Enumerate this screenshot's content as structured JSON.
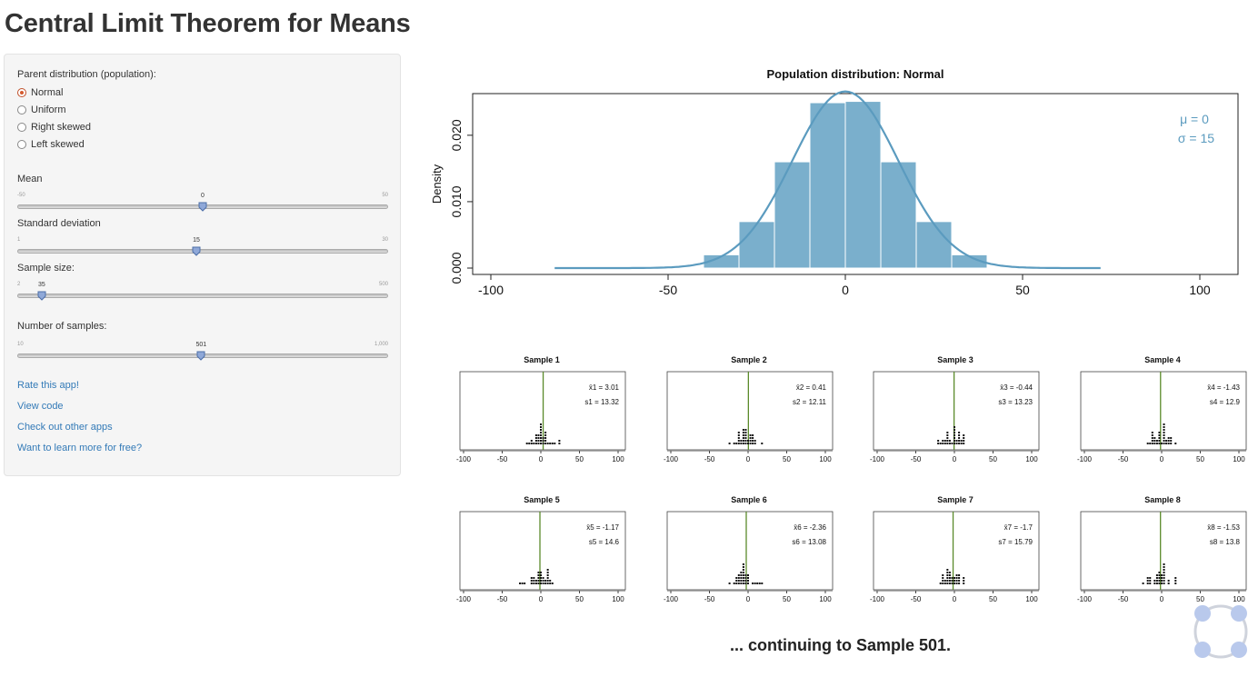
{
  "page": {
    "title": "Central Limit Theorem for Means"
  },
  "sidebar": {
    "parent_label": "Parent distribution (population):",
    "distributions": [
      {
        "label": "Normal",
        "checked": true
      },
      {
        "label": "Uniform",
        "checked": false
      },
      {
        "label": "Right skewed",
        "checked": false
      },
      {
        "label": "Left skewed",
        "checked": false
      }
    ],
    "sliders": [
      {
        "label": "Mean",
        "min": "-50",
        "max": "50",
        "value": "0",
        "fraction": 0.5
      },
      {
        "label": "Standard deviation",
        "min": "1",
        "max": "30",
        "value": "15",
        "fraction": 0.483
      },
      {
        "label": "Sample size:",
        "min": "2",
        "max": "500",
        "value": "35",
        "fraction": 0.066
      },
      {
        "label": "Number of samples:",
        "min": "10",
        "max": "1,000",
        "value": "501",
        "fraction": 0.496
      }
    ],
    "links": [
      "Rate this app!",
      "View code",
      "Check out other apps",
      "Want to learn more for free?"
    ]
  },
  "colors": {
    "bar": "#7aafcc",
    "curve": "#5b9bbf",
    "sample_line": "#5a8a2a",
    "link": "#337ab7",
    "radio": "#d45a2f"
  },
  "chart_data": [
    {
      "type": "bar",
      "title": "Population distribution: Normal",
      "ylabel": "Density",
      "xlim": [
        -100,
        100
      ],
      "ylim": [
        0,
        0.026
      ],
      "xticks": [
        "-100",
        "-50",
        "0",
        "50",
        "100"
      ],
      "yticks": [
        "0.000",
        "0.010",
        "0.020"
      ],
      "bins": [
        {
          "from": -40,
          "to": -30,
          "value": 0.002
        },
        {
          "from": -30,
          "to": -20,
          "value": 0.007
        },
        {
          "from": -20,
          "to": -10,
          "value": 0.016
        },
        {
          "from": -10,
          "to": 0,
          "value": 0.0249
        },
        {
          "from": 0,
          "to": 10,
          "value": 0.0251
        },
        {
          "from": 10,
          "to": 20,
          "value": 0.016
        },
        {
          "from": 20,
          "to": 30,
          "value": 0.007
        },
        {
          "from": 30,
          "to": 40,
          "value": 0.002
        }
      ],
      "density_curve": {
        "mean": 0,
        "sd": 15,
        "x_range": [
          -82,
          72
        ]
      },
      "annotations": [
        "μ = 0",
        "σ = 15"
      ]
    },
    {
      "type": "scatter",
      "samples": [
        {
          "title": "Sample 1",
          "mean_label": "x̄1 = 3.01",
          "sd_label": "s1 = 13.32",
          "mean": 3.01
        },
        {
          "title": "Sample 2",
          "mean_label": "x̄2 = 0.41",
          "sd_label": "s2 = 12.11",
          "mean": 0.41
        },
        {
          "title": "Sample 3",
          "mean_label": "x̄3 = -0.44",
          "sd_label": "s3 = 13.23",
          "mean": -0.44
        },
        {
          "title": "Sample 4",
          "mean_label": "x̄4 = -1.43",
          "sd_label": "s4 = 12.9",
          "mean": -1.43
        },
        {
          "title": "Sample 5",
          "mean_label": "x̄5 = -1.17",
          "sd_label": "s5 = 14.6",
          "mean": -1.17
        },
        {
          "title": "Sample 6",
          "mean_label": "x̄6 = -2.36",
          "sd_label": "s6 = 13.08",
          "mean": -2.36
        },
        {
          "title": "Sample 7",
          "mean_label": "x̄7 = -1.7",
          "sd_label": "s7 = 15.79",
          "mean": -1.7
        },
        {
          "title": "Sample 8",
          "mean_label": "x̄8 = -1.53",
          "sd_label": "s8 = 13.8",
          "mean": -1.53
        }
      ],
      "xticks": [
        "-100",
        "-50",
        "0",
        "50",
        "100"
      ],
      "xlim": [
        -100,
        100
      ]
    }
  ],
  "footer": {
    "text": "... continuing to Sample 501."
  }
}
